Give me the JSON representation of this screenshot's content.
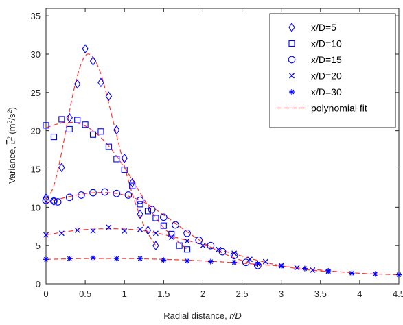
{
  "chart_data": {
    "type": "scatter",
    "xlabel_prefix": "Radial distance, ",
    "xlabel_var": "r/D",
    "ylabel_prefix": "Variance, ",
    "ylabel_var": "u",
    "ylabel_sup": "2",
    "ylabel_units_open": " (m",
    "ylabel_units_sup1": "2",
    "ylabel_units_mid": "/s",
    "ylabel_units_sup2": "2",
    "ylabel_units_close": ")",
    "xlim": [
      0,
      4.5
    ],
    "ylim": [
      0,
      36
    ],
    "xticks": [
      "0",
      "0.5",
      "1",
      "1.5",
      "2",
      "2.5",
      "3",
      "3.5",
      "4",
      "4.5"
    ],
    "yticks": [
      "0",
      "5",
      "10",
      "15",
      "20",
      "25",
      "30",
      "35"
    ],
    "grid": false,
    "legend_position": "top-right",
    "series": [
      {
        "name": "x/D=5",
        "marker": "diamond",
        "color": "#0000ff",
        "x": [
          0.0,
          0.1,
          0.2,
          0.3,
          0.4,
          0.5,
          0.6,
          0.7,
          0.8,
          0.9,
          1.0,
          1.1,
          1.2,
          1.3,
          1.4
        ],
        "y": [
          11.2,
          10.8,
          15.2,
          21.7,
          26.1,
          30.7,
          29.1,
          26.3,
          24.5,
          20.1,
          16.4,
          13.2,
          9.1,
          7.0,
          5.0
        ]
      },
      {
        "name": "x/D=10",
        "marker": "square",
        "color": "#0000ff",
        "x": [
          0.0,
          0.1,
          0.2,
          0.3,
          0.4,
          0.5,
          0.6,
          0.7,
          0.8,
          0.9,
          1.0,
          1.1,
          1.2,
          1.3,
          1.4,
          1.5,
          1.6,
          1.7,
          1.8
        ],
        "y": [
          20.7,
          19.2,
          21.5,
          20.2,
          21.4,
          20.8,
          19.5,
          19.9,
          17.9,
          16.3,
          14.9,
          12.8,
          10.4,
          9.5,
          8.6,
          7.6,
          6.5,
          5.0,
          4.5
        ]
      },
      {
        "name": "x/D=15",
        "marker": "circle",
        "color": "#0000ff",
        "x": [
          0.0,
          0.1,
          0.15,
          0.3,
          0.45,
          0.6,
          0.75,
          0.9,
          1.05,
          1.2,
          1.35,
          1.5,
          1.65,
          1.8,
          1.95,
          2.1,
          2.25,
          2.4,
          2.55,
          2.7
        ],
        "y": [
          10.9,
          10.8,
          10.7,
          11.3,
          11.6,
          11.9,
          12.0,
          11.8,
          11.6,
          10.9,
          9.7,
          8.7,
          7.7,
          6.6,
          5.7,
          5.0,
          4.2,
          3.7,
          2.8,
          2.4
        ]
      },
      {
        "name": "x/D=20",
        "marker": "x",
        "color": "#0000ff",
        "x": [
          0.0,
          0.2,
          0.4,
          0.6,
          0.8,
          1.0,
          1.2,
          1.4,
          1.6,
          1.8,
          2.0,
          2.2,
          2.4,
          2.6,
          2.8,
          3.0,
          3.2,
          3.4,
          3.6
        ],
        "y": [
          6.4,
          6.6,
          7.0,
          6.9,
          7.4,
          6.9,
          7.1,
          6.6,
          6.1,
          5.6,
          5.0,
          4.5,
          4.0,
          3.2,
          2.9,
          2.4,
          2.1,
          1.8,
          1.6
        ]
      },
      {
        "name": "x/D=30",
        "marker": "asterisk",
        "color": "#0000ff",
        "x": [
          0.0,
          0.3,
          0.6,
          0.9,
          1.2,
          1.5,
          1.8,
          2.1,
          2.4,
          2.7,
          3.0,
          3.3,
          3.6,
          3.9,
          4.2,
          4.5
        ],
        "y": [
          3.2,
          3.3,
          3.4,
          3.3,
          3.3,
          3.1,
          3.0,
          2.9,
          2.8,
          2.6,
          2.3,
          2.0,
          1.7,
          1.4,
          1.3,
          1.2
        ]
      }
    ],
    "fit": {
      "name": "polynomial fit",
      "color": "#ff3333",
      "curves": [
        {
          "x": [
            0.0,
            0.1,
            0.2,
            0.3,
            0.4,
            0.5,
            0.6,
            0.7,
            0.8,
            0.9,
            1.0,
            1.1,
            1.2,
            1.3,
            1.4
          ],
          "y": [
            11.0,
            12.8,
            17.2,
            22.6,
            27.2,
            29.8,
            29.6,
            27.4,
            23.6,
            19.4,
            15.4,
            11.8,
            8.8,
            6.6,
            5.0
          ]
        },
        {
          "x": [
            0.0,
            0.2,
            0.4,
            0.6,
            0.8,
            1.0,
            1.2,
            1.4,
            1.6,
            1.8
          ],
          "y": [
            20.4,
            21.0,
            21.0,
            20.0,
            18.0,
            15.2,
            11.9,
            8.6,
            6.3,
            4.5
          ]
        },
        {
          "x": [
            0.0,
            0.3,
            0.6,
            0.9,
            1.2,
            1.5,
            1.8,
            2.1,
            2.4,
            2.7
          ],
          "y": [
            10.6,
            11.4,
            11.9,
            11.8,
            10.9,
            9.0,
            6.8,
            4.8,
            3.4,
            2.4
          ]
        },
        {
          "x": [
            0.0,
            0.4,
            0.8,
            1.2,
            1.6,
            2.0,
            2.4,
            2.8,
            3.2,
            3.6
          ],
          "y": [
            6.4,
            7.0,
            7.2,
            7.0,
            6.2,
            5.1,
            3.9,
            2.8,
            2.0,
            1.6
          ]
        },
        {
          "x": [
            0.0,
            0.5,
            1.0,
            1.5,
            2.0,
            2.5,
            3.0,
            3.5,
            4.0,
            4.5
          ],
          "y": [
            3.2,
            3.3,
            3.3,
            3.2,
            3.0,
            2.7,
            2.3,
            1.8,
            1.4,
            1.2
          ]
        }
      ]
    }
  }
}
